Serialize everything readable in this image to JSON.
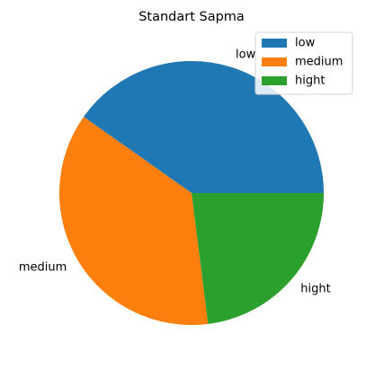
{
  "chart_data": {
    "type": "pie",
    "title": "Standart Sapma",
    "labels": [
      "low",
      "medium",
      "hight"
    ],
    "values": [
      40.2,
      36.8,
      23.0
    ],
    "colors": [
      "#1f77b4",
      "#ff7f0e",
      "#2ca02c"
    ],
    "start_angle_deg": 0,
    "direction": "counterclockwise",
    "legend": {
      "position": "top-right",
      "entries": [
        "low",
        "medium",
        "hight"
      ]
    }
  }
}
